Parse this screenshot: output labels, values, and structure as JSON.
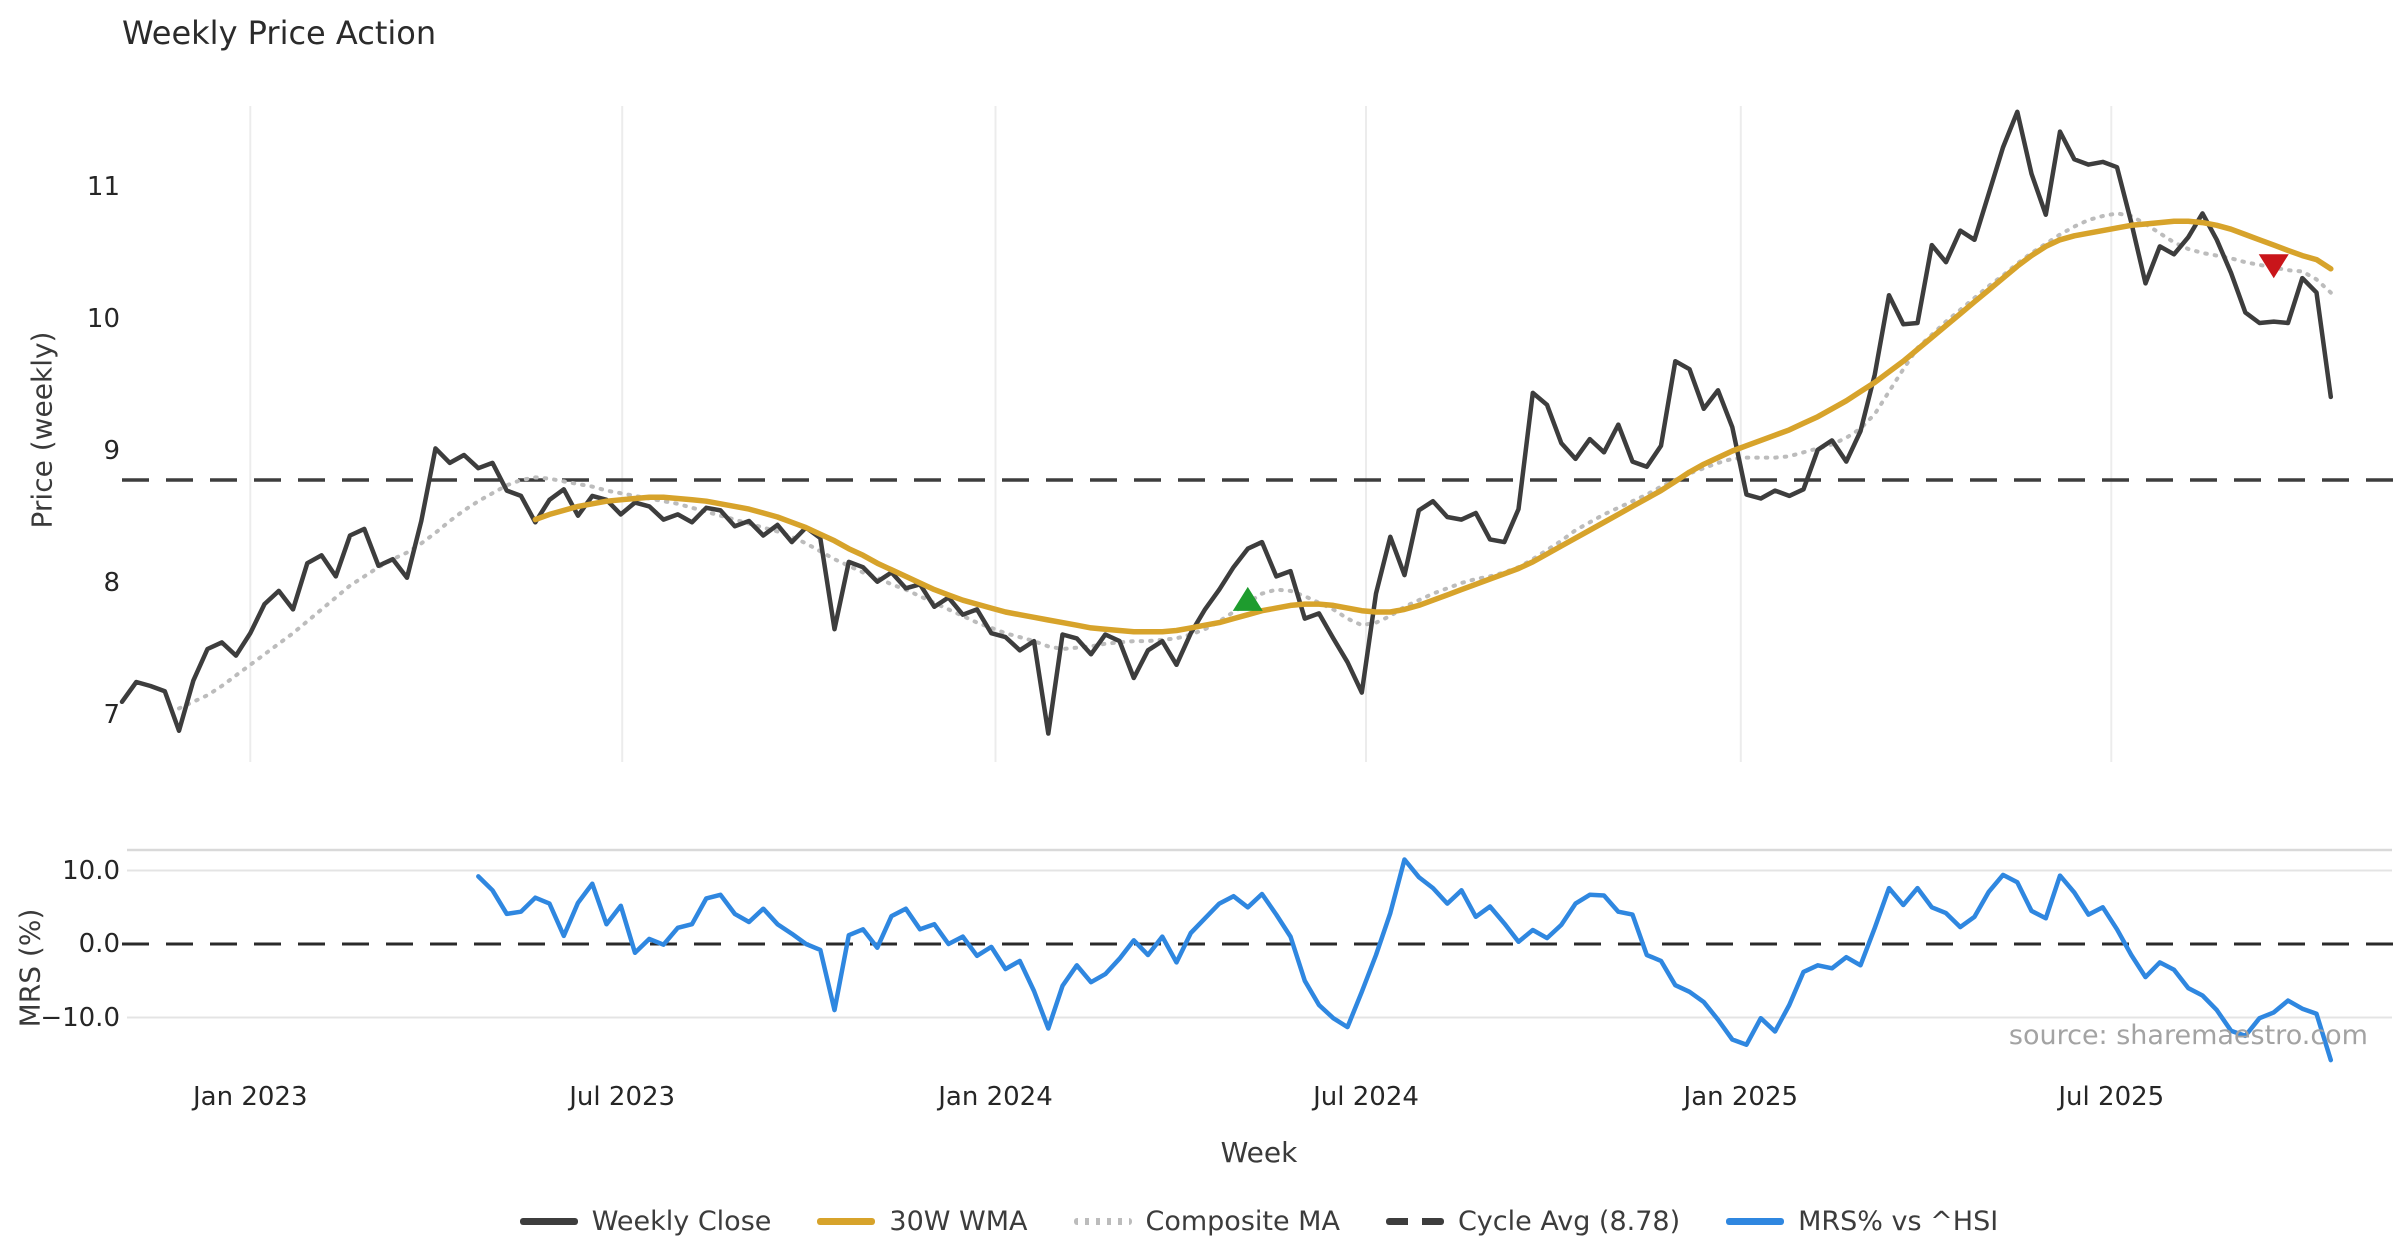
{
  "title": "Weekly Price Action",
  "source_note": "source: sharemaestro.com",
  "colors": {
    "weekly_close": "#3d3d3d",
    "wma_30w": "#d7a32b",
    "composite_ma": "#bcbcbc",
    "cycle_avg": "#3d3d3d",
    "mrs": "#2f87e0",
    "buy_marker": "#1e9c2e",
    "sell_marker": "#c9151a",
    "grid": "#ececec",
    "mrs_grid": "#e4e4e4",
    "mrs_border": "#d9d9d9"
  },
  "axes": {
    "x_label": "Week",
    "price_label": "Price (weekly)",
    "mrs_label": "MRS (%)"
  },
  "legend": {
    "items": [
      {
        "label": "Weekly Close",
        "color": "#3d3d3d",
        "style": "solid"
      },
      {
        "label": "30W WMA",
        "color": "#d7a32b",
        "style": "solid"
      },
      {
        "label": "Composite MA",
        "color": "#bcbcbc",
        "style": "dotted"
      },
      {
        "label": "Cycle Avg (8.78)",
        "color": "#3d3d3d",
        "style": "dashed"
      },
      {
        "label": "MRS% vs ^HSI",
        "color": "#2f87e0",
        "style": "solid"
      }
    ]
  },
  "chart_data": {
    "type": "line",
    "title": "Weekly Price Action",
    "x_axis": {
      "label": "Week",
      "unit": "week_index (wk 0 = first plotted week, early Nov 2022; ~14.25px/week)",
      "ticks": [
        {
          "week": 9.0,
          "label": "Jan 2023"
        },
        {
          "week": 35.1,
          "label": "Jul 2023"
        },
        {
          "week": 61.3,
          "label": "Jan 2024"
        },
        {
          "week": 87.3,
          "label": "Jul 2024"
        },
        {
          "week": 113.6,
          "label": "Jan 2025"
        },
        {
          "week": 139.6,
          "label": "Jul 2025"
        }
      ]
    },
    "panels": [
      {
        "id": "price",
        "ylabel": "Price (weekly)",
        "ylim": [
          6.6,
          11.6
        ],
        "yticks": [
          7,
          8,
          9,
          10,
          11
        ],
        "grid": "vertical-only"
      },
      {
        "id": "mrs",
        "ylabel": "MRS (%)",
        "ylim": [
          -18,
          12.8
        ],
        "yticks": [
          {
            "v": 10,
            "label": "10.0"
          },
          {
            "v": 0,
            "label": "0.0"
          },
          {
            "v": -10,
            "label": "−10.0"
          }
        ],
        "grid": "horizontal-only"
      }
    ],
    "reference_lines": [
      {
        "name": "Cycle Avg (8.78)",
        "panel": "price",
        "value": 8.78,
        "style": "dashed",
        "color": "#3d3d3d"
      },
      {
        "name": "Zero line",
        "panel": "mrs",
        "value": 0,
        "style": "dashed",
        "color": "#2a2a2a"
      }
    ],
    "markers": [
      {
        "shape": "triangle-up",
        "color": "#1e9c2e",
        "panel": "price",
        "week": 79,
        "value": 7.88
      },
      {
        "shape": "triangle-down",
        "color": "#c9151a",
        "panel": "price",
        "week": 151,
        "value": 10.4
      }
    ],
    "series": [
      {
        "name": "Weekly Close",
        "panel": "price",
        "color": "#3d3d3d",
        "style": "solid",
        "start_week": 0,
        "values": [
          7.1,
          7.25,
          7.22,
          7.18,
          6.88,
          7.26,
          7.5,
          7.55,
          7.45,
          7.62,
          7.84,
          7.94,
          7.8,
          8.15,
          8.21,
          8.05,
          8.36,
          8.41,
          8.13,
          8.18,
          8.04,
          8.47,
          9.02,
          8.91,
          8.97,
          8.87,
          8.91,
          8.7,
          8.66,
          8.46,
          8.63,
          8.71,
          8.51,
          8.66,
          8.63,
          8.52,
          8.61,
          8.58,
          8.48,
          8.52,
          8.46,
          8.57,
          8.55,
          8.43,
          8.47,
          8.36,
          8.44,
          8.31,
          8.42,
          8.34,
          7.65,
          8.16,
          8.12,
          8.01,
          8.08,
          7.96,
          7.99,
          7.82,
          7.89,
          7.76,
          7.8,
          7.62,
          7.59,
          7.49,
          7.56,
          6.86,
          7.61,
          7.58,
          7.46,
          7.61,
          7.56,
          7.28,
          7.49,
          7.56,
          7.38,
          7.62,
          7.8,
          7.95,
          8.12,
          8.26,
          8.31,
          8.05,
          8.09,
          7.73,
          7.77,
          7.58,
          7.4,
          7.17,
          7.92,
          8.35,
          8.06,
          8.55,
          8.62,
          8.5,
          8.48,
          8.53,
          8.33,
          8.31,
          8.56,
          9.44,
          9.35,
          9.06,
          8.94,
          9.09,
          8.99,
          9.2,
          8.92,
          8.88,
          9.04,
          9.68,
          9.62,
          9.32,
          9.46,
          9.18,
          8.67,
          8.64,
          8.7,
          8.66,
          8.71,
          9.01,
          9.08,
          8.92,
          9.15,
          9.58,
          10.18,
          9.96,
          9.97,
          10.56,
          10.43,
          10.67,
          10.6,
          10.95,
          11.3,
          11.57,
          11.1,
          10.79,
          11.42,
          11.21,
          11.17,
          11.19,
          11.15,
          10.73,
          10.27,
          10.55,
          10.49,
          10.62,
          10.8,
          10.6,
          10.35,
          10.05,
          9.97,
          9.98,
          9.97,
          10.31,
          10.2,
          9.41
        ]
      },
      {
        "name": "30W WMA",
        "panel": "price",
        "color": "#d7a32b",
        "style": "solid",
        "start_week": 29,
        "values": [
          8.48,
          8.52,
          8.55,
          8.58,
          8.6,
          8.62,
          8.63,
          8.64,
          8.65,
          8.65,
          8.64,
          8.63,
          8.62,
          8.6,
          8.58,
          8.56,
          8.53,
          8.5,
          8.46,
          8.42,
          8.37,
          8.32,
          8.26,
          8.21,
          8.15,
          8.1,
          8.05,
          8.0,
          7.95,
          7.91,
          7.87,
          7.84,
          7.81,
          7.78,
          7.76,
          7.74,
          7.72,
          7.7,
          7.68,
          7.66,
          7.65,
          7.64,
          7.63,
          7.63,
          7.63,
          7.64,
          7.66,
          7.68,
          7.7,
          7.73,
          7.76,
          7.79,
          7.81,
          7.83,
          7.84,
          7.84,
          7.83,
          7.81,
          7.79,
          7.78,
          7.78,
          7.8,
          7.83,
          7.87,
          7.91,
          7.95,
          7.99,
          8.03,
          8.07,
          8.11,
          8.16,
          8.22,
          8.28,
          8.34,
          8.4,
          8.46,
          8.52,
          8.58,
          8.64,
          8.7,
          8.77,
          8.84,
          8.9,
          8.95,
          9.0,
          9.04,
          9.08,
          9.12,
          9.16,
          9.21,
          9.26,
          9.32,
          9.38,
          9.45,
          9.52,
          9.6,
          9.68,
          9.77,
          9.86,
          9.95,
          10.04,
          10.13,
          10.22,
          10.31,
          10.4,
          10.48,
          10.55,
          10.6,
          10.63,
          10.65,
          10.67,
          10.69,
          10.71,
          10.72,
          10.73,
          10.74,
          10.74,
          10.73,
          10.71,
          10.68,
          10.64,
          10.6,
          10.56,
          10.52,
          10.48,
          10.45,
          10.38
        ]
      },
      {
        "name": "Composite MA",
        "panel": "price",
        "color": "#bcbcbc",
        "style": "dotted",
        "start_week": 4,
        "values": [
          7.05,
          7.1,
          7.15,
          7.22,
          7.3,
          7.38,
          7.46,
          7.54,
          7.62,
          7.71,
          7.8,
          7.89,
          7.98,
          8.05,
          8.12,
          8.18,
          8.23,
          8.3,
          8.38,
          8.47,
          8.55,
          8.62,
          8.68,
          8.74,
          8.78,
          8.8,
          8.79,
          8.77,
          8.75,
          8.73,
          8.7,
          8.68,
          8.66,
          8.64,
          8.62,
          8.6,
          8.57,
          8.54,
          8.51,
          8.48,
          8.45,
          8.42,
          8.39,
          8.35,
          8.3,
          8.24,
          8.18,
          8.13,
          8.08,
          8.04,
          7.99,
          7.95,
          7.9,
          7.85,
          7.8,
          7.75,
          7.7,
          7.66,
          7.62,
          7.59,
          7.56,
          7.52,
          7.5,
          7.51,
          7.52,
          7.54,
          7.55,
          7.56,
          7.56,
          7.57,
          7.58,
          7.61,
          7.65,
          7.71,
          7.78,
          7.85,
          7.92,
          7.95,
          7.94,
          7.9,
          7.85,
          7.8,
          7.73,
          7.68,
          7.7,
          7.75,
          7.82,
          7.87,
          7.92,
          7.96,
          8.0,
          8.03,
          8.05,
          8.08,
          8.12,
          8.18,
          8.25,
          8.32,
          8.4,
          8.46,
          8.52,
          8.57,
          8.62,
          8.67,
          8.73,
          8.78,
          8.83,
          8.87,
          8.91,
          8.94,
          8.95,
          8.95,
          8.95,
          8.96,
          8.99,
          9.02,
          9.05,
          9.1,
          9.17,
          9.28,
          9.45,
          9.62,
          9.78,
          9.88,
          9.98,
          10.07,
          10.16,
          10.25,
          10.33,
          10.42,
          10.5,
          10.57,
          10.64,
          10.7,
          10.75,
          10.78,
          10.8,
          10.78,
          10.72,
          10.65,
          10.58,
          10.53,
          10.5,
          10.48,
          10.46,
          10.43,
          10.41,
          10.39,
          10.37,
          10.36,
          10.3,
          10.2
        ]
      },
      {
        "name": "MRS% vs ^HSI",
        "panel": "mrs",
        "color": "#2f87e0",
        "style": "solid",
        "start_week": 25,
        "values": [
          9.2,
          7.3,
          4.1,
          4.4,
          6.3,
          5.5,
          1.1,
          5.6,
          8.2,
          2.7,
          5.2,
          -1.2,
          0.7,
          -0.1,
          2.2,
          2.7,
          6.2,
          6.7,
          4.1,
          3.0,
          4.8,
          2.7,
          1.4,
          0.0,
          -0.8,
          -9.0,
          1.2,
          2.0,
          -0.5,
          3.8,
          4.8,
          2.0,
          2.7,
          0.0,
          1.0,
          -1.6,
          -0.4,
          -3.4,
          -2.3,
          -6.4,
          -11.5,
          -5.7,
          -2.9,
          -5.2,
          -4.1,
          -2.0,
          0.5,
          -1.5,
          1.0,
          -2.5,
          1.5,
          3.5,
          5.5,
          6.5,
          5.0,
          6.8,
          4.0,
          1.0,
          -5.0,
          -8.3,
          -10.1,
          -11.3,
          -6.5,
          -1.5,
          4.2,
          11.5,
          9.1,
          7.6,
          5.5,
          7.3,
          3.7,
          5.1,
          2.8,
          0.3,
          1.9,
          0.8,
          2.6,
          5.5,
          6.7,
          6.6,
          4.4,
          4.0,
          -1.5,
          -2.3,
          -5.6,
          -6.5,
          -7.9,
          -10.3,
          -13.0,
          -13.7,
          -10.1,
          -11.9,
          -8.3,
          -3.8,
          -2.9,
          -3.3,
          -1.8,
          -2.9,
          2.2,
          7.6,
          5.3,
          7.6,
          5.0,
          4.2,
          2.3,
          3.7,
          7.1,
          9.4,
          8.4,
          4.5,
          3.5,
          9.3,
          7.0,
          4.0,
          5.0,
          2.0,
          -1.5,
          -4.5,
          -2.5,
          -3.5,
          -6.0,
          -7.0,
          -9.0,
          -11.8,
          -12.5,
          -10.1,
          -9.3,
          -7.7,
          -8.8,
          -9.5,
          -15.8
        ]
      }
    ]
  }
}
